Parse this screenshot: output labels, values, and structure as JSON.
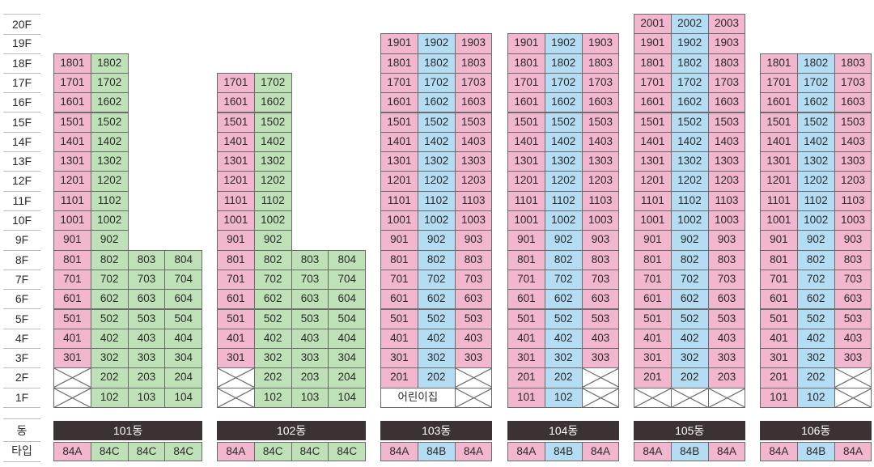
{
  "floor_labels": [
    "20F",
    "19F",
    "18F",
    "17F",
    "16F",
    "15F",
    "14F",
    "13F",
    "12F",
    "11F",
    "10F",
    "9F",
    "8F",
    "7F",
    "6F",
    "5F",
    "4F",
    "3F",
    "2F",
    "1F"
  ],
  "row_labels": {
    "dong": "동",
    "type": "타입"
  },
  "colors": {
    "84A": "#f2b6cf",
    "84B": "#b4dcf2",
    "84C": "#bfe1b7",
    "dong_bar": "#3a3233"
  },
  "buildings": [
    {
      "name": "101동",
      "types": [
        "84A",
        "84C",
        "84C",
        "84C"
      ],
      "units": {
        "18": [
          "1801",
          "1802",
          null,
          null
        ],
        "17": [
          "1701",
          "1702",
          null,
          null
        ],
        "16": [
          "1601",
          "1602",
          null,
          null
        ],
        "15": [
          "1501",
          "1502",
          null,
          null
        ],
        "14": [
          "1401",
          "1402",
          null,
          null
        ],
        "13": [
          "1301",
          "1302",
          null,
          null
        ],
        "12": [
          "1201",
          "1202",
          null,
          null
        ],
        "11": [
          "1101",
          "1102",
          null,
          null
        ],
        "10": [
          "1001",
          "1002",
          null,
          null
        ],
        "9": [
          "901",
          "902",
          null,
          null
        ],
        "8": [
          "801",
          "802",
          "803",
          "804"
        ],
        "7": [
          "701",
          "702",
          "703",
          "704"
        ],
        "6": [
          "601",
          "602",
          "603",
          "604"
        ],
        "5": [
          "501",
          "502",
          "503",
          "504"
        ],
        "4": [
          "401",
          "402",
          "403",
          "404"
        ],
        "3": [
          "301",
          "302",
          "303",
          "304"
        ],
        "2": [
          "X",
          "202",
          "203",
          "204"
        ],
        "1": [
          "X",
          "102",
          "103",
          "104"
        ]
      }
    },
    {
      "name": "102동",
      "types": [
        "84A",
        "84C",
        "84C",
        "84C"
      ],
      "units": {
        "17": [
          "1701",
          "1702",
          null,
          null
        ],
        "16": [
          "1601",
          "1602",
          null,
          null
        ],
        "15": [
          "1501",
          "1502",
          null,
          null
        ],
        "14": [
          "1401",
          "1402",
          null,
          null
        ],
        "13": [
          "1301",
          "1302",
          null,
          null
        ],
        "12": [
          "1201",
          "1202",
          null,
          null
        ],
        "11": [
          "1101",
          "1102",
          null,
          null
        ],
        "10": [
          "1001",
          "1002",
          null,
          null
        ],
        "9": [
          "901",
          "902",
          null,
          null
        ],
        "8": [
          "801",
          "802",
          "803",
          "804"
        ],
        "7": [
          "701",
          "702",
          "703",
          "704"
        ],
        "6": [
          "601",
          "602",
          "603",
          "604"
        ],
        "5": [
          "501",
          "502",
          "503",
          "504"
        ],
        "4": [
          "401",
          "402",
          "403",
          "404"
        ],
        "3": [
          "301",
          "302",
          "303",
          "304"
        ],
        "2": [
          "X",
          "202",
          "203",
          "204"
        ],
        "1": [
          "X",
          "102",
          "103",
          "104"
        ]
      }
    },
    {
      "name": "103동",
      "types": [
        "84A",
        "84B",
        "84A"
      ],
      "units": {
        "19": [
          "1901",
          "1902",
          "1903"
        ],
        "18": [
          "1801",
          "1802",
          "1803"
        ],
        "17": [
          "1701",
          "1702",
          "1703"
        ],
        "16": [
          "1601",
          "1602",
          "1603"
        ],
        "15": [
          "1501",
          "1502",
          "1503"
        ],
        "14": [
          "1401",
          "1402",
          "1403"
        ],
        "13": [
          "1301",
          "1302",
          "1303"
        ],
        "12": [
          "1201",
          "1202",
          "1203"
        ],
        "11": [
          "1101",
          "1102",
          "1103"
        ],
        "10": [
          "1001",
          "1002",
          "1003"
        ],
        "9": [
          "901",
          "902",
          "903"
        ],
        "8": [
          "801",
          "802",
          "803"
        ],
        "7": [
          "701",
          "702",
          "703"
        ],
        "6": [
          "601",
          "602",
          "603"
        ],
        "5": [
          "501",
          "502",
          "503"
        ],
        "4": [
          "401",
          "402",
          "403"
        ],
        "3": [
          "301",
          "302",
          "303"
        ],
        "2": [
          "201",
          "202",
          "X"
        ],
        "1": [
          null,
          null,
          "X"
        ]
      },
      "daycare": "어린이집"
    },
    {
      "name": "104동",
      "types": [
        "84A",
        "84B",
        "84A"
      ],
      "units": {
        "19": [
          "1901",
          "1902",
          "1903"
        ],
        "18": [
          "1801",
          "1802",
          "1803"
        ],
        "17": [
          "1701",
          "1702",
          "1703"
        ],
        "16": [
          "1601",
          "1602",
          "1603"
        ],
        "15": [
          "1501",
          "1502",
          "1503"
        ],
        "14": [
          "1401",
          "1402",
          "1403"
        ],
        "13": [
          "1301",
          "1302",
          "1303"
        ],
        "12": [
          "1201",
          "1202",
          "1203"
        ],
        "11": [
          "1101",
          "1102",
          "1103"
        ],
        "10": [
          "1001",
          "1002",
          "1003"
        ],
        "9": [
          "901",
          "902",
          "903"
        ],
        "8": [
          "801",
          "802",
          "803"
        ],
        "7": [
          "701",
          "702",
          "703"
        ],
        "6": [
          "601",
          "602",
          "603"
        ],
        "5": [
          "501",
          "502",
          "503"
        ],
        "4": [
          "401",
          "402",
          "403"
        ],
        "3": [
          "301",
          "302",
          "303"
        ],
        "2": [
          "201",
          "202",
          "X"
        ],
        "1": [
          "101",
          "102",
          "X"
        ]
      }
    },
    {
      "name": "105동",
      "types": [
        "84A",
        "84B",
        "84A"
      ],
      "units": {
        "20": [
          "2001",
          "2002",
          "2003"
        ],
        "19": [
          "1901",
          "1902",
          "1903"
        ],
        "18": [
          "1801",
          "1802",
          "1803"
        ],
        "17": [
          "1701",
          "1702",
          "1703"
        ],
        "16": [
          "1601",
          "1602",
          "1603"
        ],
        "15": [
          "1501",
          "1502",
          "1503"
        ],
        "14": [
          "1401",
          "1402",
          "1403"
        ],
        "13": [
          "1301",
          "1302",
          "1303"
        ],
        "12": [
          "1201",
          "1202",
          "1203"
        ],
        "11": [
          "1101",
          "1102",
          "1103"
        ],
        "10": [
          "1001",
          "1002",
          "1003"
        ],
        "9": [
          "901",
          "902",
          "903"
        ],
        "8": [
          "801",
          "802",
          "803"
        ],
        "7": [
          "701",
          "702",
          "703"
        ],
        "6": [
          "601",
          "602",
          "603"
        ],
        "5": [
          "501",
          "502",
          "503"
        ],
        "4": [
          "401",
          "402",
          "403"
        ],
        "3": [
          "301",
          "302",
          "303"
        ],
        "2": [
          "201",
          "202",
          "203"
        ],
        "1": [
          "X",
          "X",
          "X"
        ]
      }
    },
    {
      "name": "106동",
      "types": [
        "84A",
        "84B",
        "84A"
      ],
      "units": {
        "18": [
          "1801",
          "1802",
          "1803"
        ],
        "17": [
          "1701",
          "1702",
          "1703"
        ],
        "16": [
          "1601",
          "1602",
          "1603"
        ],
        "15": [
          "1501",
          "1502",
          "1503"
        ],
        "14": [
          "1401",
          "1402",
          "1403"
        ],
        "13": [
          "1301",
          "1302",
          "1303"
        ],
        "12": [
          "1201",
          "1202",
          "1203"
        ],
        "11": [
          "1101",
          "1102",
          "1103"
        ],
        "10": [
          "1001",
          "1002",
          "1003"
        ],
        "9": [
          "901",
          "902",
          "903"
        ],
        "8": [
          "801",
          "802",
          "803"
        ],
        "7": [
          "701",
          "702",
          "703"
        ],
        "6": [
          "601",
          "602",
          "603"
        ],
        "5": [
          "501",
          "502",
          "503"
        ],
        "4": [
          "401",
          "402",
          "403"
        ],
        "3": [
          "301",
          "302",
          "303"
        ],
        "2": [
          "201",
          "202",
          "X"
        ],
        "1": [
          "101",
          "102",
          "X"
        ]
      }
    }
  ]
}
